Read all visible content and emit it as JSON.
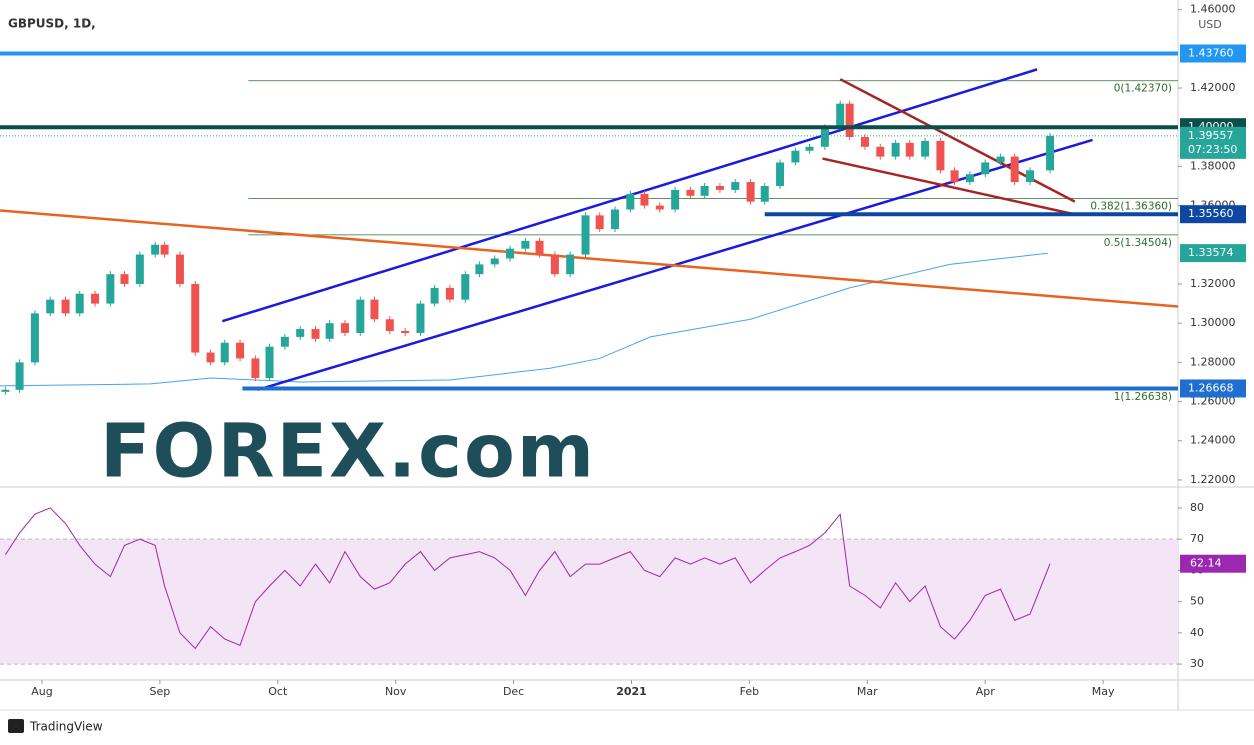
{
  "chart_data": {
    "type": "candlestick",
    "title": "GBPUSD, 1D,",
    "currency": "USD",
    "logo": "FOREX.com",
    "footer": "TradingView",
    "up_color": "#26a69a",
    "down_color": "#ef5350",
    "xlim": [
      7.644,
      17.635
    ],
    "xticks": [
      {
        "value": 8,
        "label": "Aug"
      },
      {
        "value": 9,
        "label": "Sep"
      },
      {
        "value": 10,
        "label": "Oct"
      },
      {
        "value": 11,
        "label": "Nov"
      },
      {
        "value": 12,
        "label": "Dec"
      },
      {
        "value": 13,
        "label": "2021"
      },
      {
        "value": 14,
        "label": "Feb"
      },
      {
        "value": 15,
        "label": "Mar"
      },
      {
        "value": 16,
        "label": "Apr"
      },
      {
        "value": 17,
        "label": "May"
      }
    ],
    "ylim": [
      1.2164,
      1.4649
    ],
    "yticks": [
      {
        "value": 1.22,
        "label": "1.22000"
      },
      {
        "value": 1.24,
        "label": "1.24000"
      },
      {
        "value": 1.26,
        "label": "1.26000"
      },
      {
        "value": 1.28,
        "label": "1.28000"
      },
      {
        "value": 1.3,
        "label": "1.30000"
      },
      {
        "value": 1.32,
        "label": "1.32000"
      },
      {
        "value": 1.36,
        "label": "1.36000"
      },
      {
        "value": 1.38,
        "label": "1.38000"
      },
      {
        "value": 1.42,
        "label": "1.42000"
      },
      {
        "value": 1.46,
        "label": "1.46000"
      }
    ],
    "x": [
      7.69,
      7.81,
      7.94,
      8.07,
      8.2,
      8.32,
      8.45,
      8.58,
      8.7,
      8.83,
      8.96,
      9.04,
      9.17,
      9.3,
      9.43,
      9.55,
      9.68,
      9.81,
      9.93,
      10.06,
      10.19,
      10.32,
      10.44,
      10.57,
      10.7,
      10.82,
      10.95,
      11.08,
      11.21,
      11.33,
      11.46,
      11.59,
      11.71,
      11.84,
      11.97,
      12.1,
      12.22,
      12.35,
      12.48,
      12.61,
      12.73,
      12.86,
      12.99,
      13.11,
      13.24,
      13.37,
      13.5,
      13.62,
      13.75,
      13.88,
      14.01,
      14.13,
      14.26,
      14.39,
      14.51,
      14.64,
      14.77,
      14.85,
      14.98,
      15.11,
      15.24,
      15.36,
      15.49,
      15.62,
      15.74,
      15.87,
      16.0,
      16.13,
      16.25,
      16.38,
      16.55
    ],
    "values": [
      1.266,
      1.28,
      1.305,
      1.312,
      1.305,
      1.315,
      1.31,
      1.325,
      1.32,
      1.335,
      1.34,
      1.335,
      1.32,
      1.285,
      1.28,
      1.29,
      1.282,
      1.272,
      1.288,
      1.293,
      1.297,
      1.292,
      1.3,
      1.295,
      1.312,
      1.302,
      1.296,
      1.295,
      1.31,
      1.318,
      1.312,
      1.325,
      1.33,
      1.333,
      1.338,
      1.342,
      1.335,
      1.325,
      1.335,
      1.355,
      1.348,
      1.358,
      1.366,
      1.36,
      1.358,
      1.368,
      1.365,
      1.37,
      1.368,
      1.372,
      1.362,
      1.37,
      1.382,
      1.388,
      1.39,
      1.4,
      1.412,
      1.395,
      1.39,
      1.385,
      1.392,
      1.385,
      1.393,
      1.378,
      1.372,
      1.376,
      1.382,
      1.385,
      1.372,
      1.378,
      1.3956
    ],
    "ma": {
      "color": "#42a5f5",
      "x": [
        7.64,
        8.92,
        9.43,
        10.19,
        11.46,
        12.31,
        12.73,
        13.16,
        14.01,
        14.85,
        15.7,
        16.53
      ],
      "values": [
        1.268,
        1.269,
        1.272,
        1.27,
        1.271,
        1.277,
        1.282,
        1.293,
        1.302,
        1.318,
        1.33,
        1.3357
      ]
    },
    "ma_label": {
      "value": 1.33574,
      "label": "1.33574",
      "color": "#26a69a"
    },
    "last_price": {
      "value": 1.39557,
      "label": "1.39557",
      "timer": "07:23:50",
      "color": "#26a69a"
    },
    "levels": [
      {
        "value": 1.4376,
        "label": "1.43760",
        "color": "#2196f3",
        "x0": 7.644
      },
      {
        "value": 1.4,
        "label": "1.40000",
        "color": "#0b4f4a",
        "x0": 7.644
      },
      {
        "value": 1.3556,
        "label": "1.35560",
        "color": "#0d47a1",
        "x0": 14.13
      },
      {
        "value": 1.26668,
        "label": "1.26668",
        "color": "#1e6fd0",
        "x0": 9.7
      }
    ],
    "fib": {
      "color": "#2e6b30",
      "x0": 9.75,
      "values": [
        1.4237,
        1.3636,
        1.34504,
        1.26638
      ],
      "labels": [
        "0(1.42370)",
        "0.382(1.36360)",
        "0.5(1.34504)",
        "1(1.26638)"
      ]
    },
    "trendlines": [
      {
        "color": "#1a1ae0",
        "x": [
          9.53,
          16.44
        ],
        "y": [
          1.301,
          1.4295
        ]
      },
      {
        "color": "#1a1ae0",
        "x": [
          9.83,
          16.91
        ],
        "y": [
          1.266,
          1.3935
        ]
      },
      {
        "color": "#e8641e",
        "x": [
          7.644,
          17.635
        ],
        "y": [
          1.3575,
          1.3085
        ]
      },
      {
        "color": "#a52525",
        "x": [
          14.77,
          16.76
        ],
        "y": [
          1.4245,
          1.362
        ]
      },
      {
        "color": "#a52525",
        "x": [
          14.62,
          16.76
        ],
        "y": [
          1.384,
          1.3555
        ]
      }
    ],
    "rsi": {
      "color": "#9c27b0",
      "ylim": [
        24.9,
        86.7
      ],
      "yticks": [
        30,
        40,
        50,
        60,
        70,
        80
      ],
      "band": [
        30,
        70
      ],
      "values": [
        65,
        72,
        78,
        80,
        75,
        68,
        62,
        58,
        68,
        70,
        68,
        55,
        40,
        35,
        42,
        38,
        36,
        50,
        55,
        60,
        55,
        62,
        56,
        66,
        58,
        54,
        56,
        62,
        66,
        60,
        64,
        65,
        66,
        64,
        60,
        52,
        60,
        66,
        58,
        62,
        62,
        64,
        66,
        60,
        58,
        64,
        62,
        64,
        62,
        64,
        56,
        60,
        64,
        66,
        68,
        72,
        78,
        55,
        52,
        48,
        56,
        50,
        55,
        42,
        38,
        44,
        52,
        54,
        44,
        46,
        62.14
      ],
      "last_label": {
        "value": 62.14,
        "label": "62.14"
      }
    }
  }
}
